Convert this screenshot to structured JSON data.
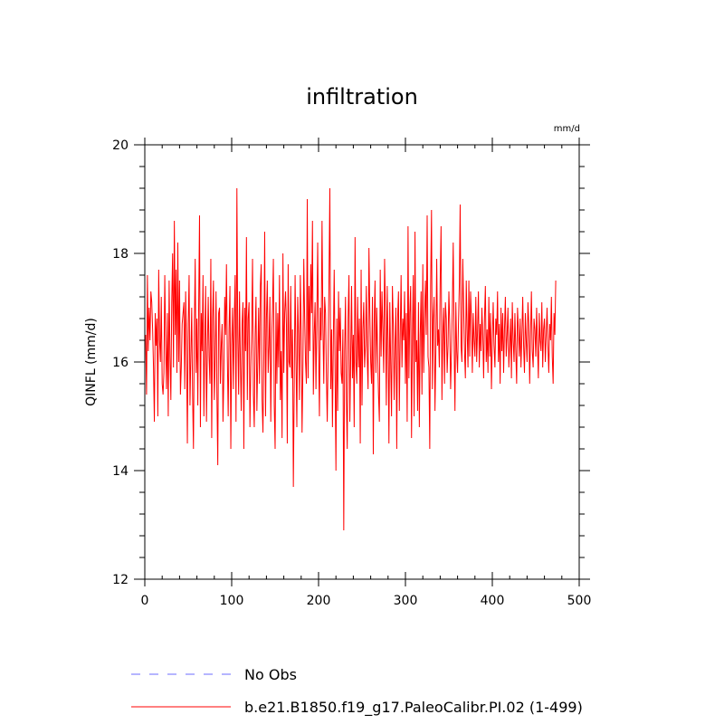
{
  "chart_data": {
    "type": "line",
    "title": "infiltration",
    "units_label": "mm/d",
    "xlabel": "",
    "ylabel": "QINFL  (mm/d)",
    "xlim": [
      0,
      500
    ],
    "ylim": [
      12,
      20
    ],
    "xticks": [
      0,
      100,
      200,
      300,
      400,
      500
    ],
    "yticks": [
      12,
      14,
      16,
      18,
      20
    ],
    "x_minor_step": 20,
    "y_minor_step": 0.4,
    "grid": false,
    "legend_position": "bottom-left below plot",
    "legend": [
      {
        "name": "No Obs",
        "color": "#6b6bff",
        "style": "dashed"
      },
      {
        "name": "b.e21.B1850.f19_g17.PaleoCalibr.PI.02 (1-499)",
        "color": "#ff0000",
        "style": "solid"
      }
    ],
    "series": [
      {
        "name": "b.e21.B1850.f19_g17.PaleoCalibr.PI.02 (1-499)",
        "color": "#ff0000",
        "x_start": 1,
        "x_step": 1,
        "values": [
          16.5,
          15.4,
          17.6,
          16.2,
          17.0,
          16.4,
          17.3,
          17.1,
          16.6,
          15.9,
          14.9,
          16.9,
          16.3,
          16.8,
          15.0,
          17.7,
          16.4,
          16.0,
          17.2,
          15.6,
          15.4,
          15.8,
          17.6,
          16.3,
          15.5,
          16.9,
          15.0,
          17.5,
          16.1,
          15.3,
          17.1,
          18.0,
          15.9,
          18.6,
          16.5,
          17.7,
          15.8,
          18.2,
          16.0,
          17.5,
          15.4,
          15.9,
          16.7,
          16.9,
          17.1,
          15.5,
          17.3,
          16.4,
          14.5,
          16.7,
          17.6,
          15.2,
          16.1,
          17.0,
          15.4,
          14.4,
          16.6,
          17.9,
          15.8,
          16.8,
          15.2,
          17.0,
          18.7,
          14.8,
          16.9,
          16.2,
          17.6,
          15.0,
          16.4,
          17.4,
          14.9,
          16.2,
          17.2,
          16.1,
          15.6,
          17.9,
          14.6,
          16.8,
          17.5,
          15.3,
          16.0,
          17.3,
          15.4,
          14.1,
          16.9,
          17.0,
          15.6,
          16.3,
          16.7,
          14.9,
          15.8,
          17.2,
          16.5,
          17.8,
          16.1,
          15.0,
          16.6,
          17.4,
          14.4,
          16.3,
          17.0,
          15.5,
          16.8,
          17.6,
          14.9,
          19.2,
          16.5,
          15.4,
          17.3,
          16.0,
          15.1,
          16.7,
          17.1,
          14.4,
          17.0,
          16.2,
          18.3,
          15.3,
          16.8,
          17.1,
          14.8,
          15.9,
          16.6,
          17.9,
          15.4,
          14.8,
          16.5,
          17.2,
          15.1,
          16.0,
          17.0,
          15.6,
          17.4,
          17.8,
          15.3,
          14.7,
          16.1,
          18.4,
          15.0,
          16.8,
          17.5,
          15.8,
          16.3,
          17.2,
          14.9,
          16.4,
          17.0,
          17.9,
          15.2,
          14.4,
          17.1,
          15.6,
          16.9,
          15.9,
          17.6,
          15.3,
          16.2,
          14.6,
          18.0,
          15.8,
          16.9,
          17.3,
          16.7,
          14.5,
          17.8,
          16.0,
          15.9,
          17.4,
          15.7,
          16.6,
          13.7,
          15.6,
          17.6,
          16.1,
          14.8,
          17.2,
          16.5,
          15.3,
          17.6,
          16.6,
          14.7,
          15.9,
          17.9,
          16.8,
          16.0,
          15.6,
          19.0,
          15.7,
          17.4,
          16.2,
          17.8,
          16.9,
          18.6,
          15.4,
          16.5,
          17.1,
          15.5,
          16.8,
          18.2,
          16.3,
          15.0,
          17.0,
          16.4,
          18.6,
          16.7,
          15.6,
          17.2,
          16.9,
          15.8,
          14.9,
          16.1,
          17.5,
          19.2,
          15.5,
          16.6,
          14.8,
          16.4,
          17.7,
          15.9,
          14.0,
          16.8,
          15.1,
          17.3,
          16.2,
          17.0,
          15.8,
          15.6,
          16.6,
          12.9,
          16.2,
          17.2,
          15.3,
          14.4,
          16.8,
          17.6,
          14.9,
          16.1,
          17.4,
          15.7,
          16.5,
          14.8,
          18.3,
          16.0,
          15.6,
          17.2,
          15.9,
          16.8,
          14.5,
          17.7,
          15.2,
          16.6,
          17.1,
          15.9,
          16.3,
          17.4,
          16.1,
          15.5,
          18.1,
          16.9,
          16.0,
          15.6,
          17.2,
          14.3,
          16.7,
          17.5,
          15.8,
          17.0,
          16.2,
          15.4,
          14.9,
          17.7,
          16.1,
          17.3,
          16.6,
          15.8,
          17.9,
          16.9,
          15.2,
          17.4,
          16.4,
          14.5,
          17.1,
          16.0,
          15.0,
          17.4,
          16.7,
          15.3,
          16.3,
          17.0,
          14.4,
          16.8,
          17.3,
          15.1,
          16.5,
          17.6,
          15.9,
          16.8,
          16.4,
          17.3,
          15.6,
          16.9,
          14.9,
          18.5,
          15.7,
          16.9,
          17.4,
          14.6,
          16.5,
          17.6,
          15.0,
          18.4,
          16.0,
          16.4,
          15.1,
          17.1,
          14.8,
          16.5,
          17.3,
          15.4,
          17.8,
          15.8,
          16.8,
          17.5,
          16.5,
          18.7,
          16.1,
          15.9,
          14.4,
          17.4,
          18.8,
          15.5,
          16.8,
          17.2,
          15.1,
          16.2,
          17.9,
          16.3,
          16.6,
          15.9,
          17.5,
          18.5,
          15.3,
          16.5,
          17.0,
          15.6,
          17.1,
          16.8,
          15.8,
          16.3,
          17.3,
          16.7,
          15.5,
          16.2,
          17.0,
          18.2,
          16.4,
          15.1,
          17.1,
          16.2,
          15.8,
          16.7,
          17.4,
          18.9,
          16.3,
          16.0,
          17.9,
          17.0,
          16.2,
          15.7,
          17.5,
          16.6,
          15.9,
          17.5,
          16.1,
          17.3,
          16.8,
          15.8,
          16.9,
          16.4,
          16.1,
          17.2,
          16.0,
          16.6,
          17.3,
          15.9,
          16.7,
          16.2,
          17.0,
          16.5,
          15.7,
          16.8,
          17.4,
          16.0,
          16.6,
          15.8,
          17.2,
          16.1,
          16.9,
          15.5,
          16.4,
          17.1,
          16.3,
          15.9,
          16.8,
          16.5,
          17.3,
          16.0,
          16.7,
          15.6,
          17.0,
          16.2,
          16.9,
          15.8,
          16.6,
          17.2,
          16.1,
          16.5,
          17.0,
          15.9,
          16.3,
          16.8,
          15.7,
          17.1,
          16.4,
          16.0,
          16.9,
          16.2,
          15.6,
          17.0,
          16.6,
          16.1,
          16.8,
          15.9,
          16.5,
          17.2,
          16.3,
          15.8,
          16.9,
          16.4,
          16.0,
          17.1,
          16.7,
          15.6,
          16.5,
          17.3,
          16.2,
          15.9,
          16.8,
          16.6,
          16.1,
          17.0,
          16.3,
          15.7,
          16.9,
          16.4,
          16.2,
          17.1,
          15.9,
          16.6,
          16.8,
          16.0,
          16.5,
          17.0,
          16.3,
          15.8,
          16.7,
          16.4,
          17.2,
          16.1,
          15.6,
          16.9,
          16.5,
          17.5
        ]
      }
    ]
  }
}
